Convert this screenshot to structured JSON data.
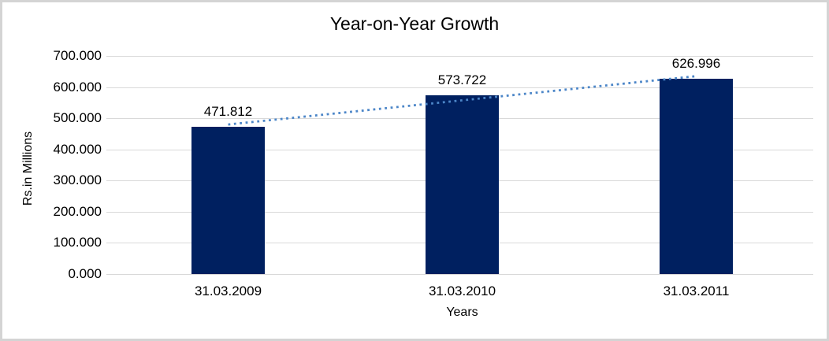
{
  "chart_data": {
    "type": "bar",
    "title": "Year-on-Year Growth",
    "xlabel": "Years",
    "ylabel": "Rs.in Millions",
    "categories": [
      "31.03.2009",
      "31.03.2010",
      "31.03.2011"
    ],
    "values": [
      471.812,
      573.722,
      626.996
    ],
    "data_labels": [
      "471.812",
      "573.722",
      "626.996"
    ],
    "ylim": [
      0,
      700
    ],
    "ytick_step": 100,
    "ytick_labels": [
      "0.000",
      "100.000",
      "200.000",
      "300.000",
      "400.000",
      "500.000",
      "600.000",
      "700.000"
    ],
    "grid": true,
    "legend": "none",
    "trendline": {
      "type": "linear",
      "style": "dotted",
      "color": "#4c86c8"
    },
    "colors": {
      "bar": "#002060",
      "gridline": "#d9d9d9",
      "border": "#d4d4d4",
      "text": "#000000",
      "background": "#ffffff"
    }
  }
}
